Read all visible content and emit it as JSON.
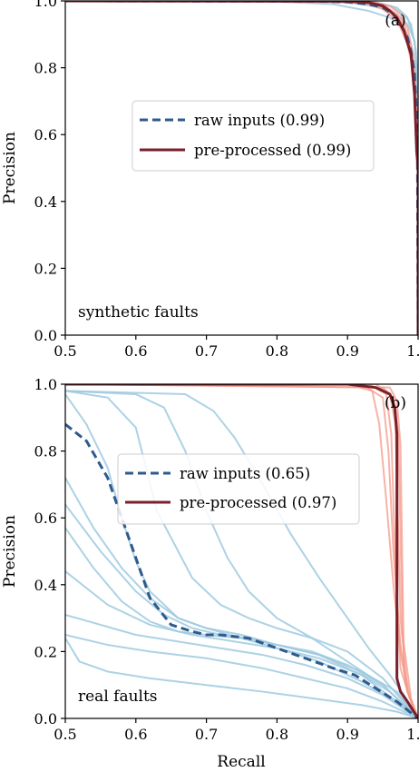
{
  "chart_data": [
    {
      "type": "line",
      "panel_tag": "(a)",
      "annotation": "synthetic faults",
      "xlabel": "",
      "ylabel": "Precision",
      "xlim": [
        0.5,
        1.0
      ],
      "ylim": [
        0.0,
        1.0
      ],
      "xticks": [
        0.5,
        0.6,
        0.7,
        0.8,
        0.9,
        1.0
      ],
      "xtick_labels": [
        "0.5",
        "0.6",
        "0.7",
        "0.8",
        "0.9",
        "1.0"
      ],
      "yticks": [
        0.0,
        0.2,
        0.4,
        0.6,
        0.8,
        1.0
      ],
      "ytick_labels": [
        "0.0",
        "0.2",
        "0.4",
        "0.6",
        "0.8",
        "1.0"
      ],
      "grid": false,
      "legend_position": "center-right",
      "legend": [
        {
          "label": "raw inputs (0.99)",
          "color": "#2f5a8c",
          "style": "dashed"
        },
        {
          "label": "pre-processed (0.99)",
          "color": "#7a1f2b",
          "style": "solid"
        }
      ],
      "series": [
        {
          "name": "raw inputs (0.99)",
          "role": "mean",
          "group": "raw",
          "color": "#2f5a8c",
          "style": "dashed",
          "x": [
            0.5,
            0.85,
            0.9,
            0.93,
            0.95,
            0.965,
            0.975,
            0.985,
            0.99,
            0.995,
            0.999,
            1.0
          ],
          "y": [
            1.0,
            0.999,
            0.997,
            0.99,
            0.98,
            0.96,
            0.93,
            0.89,
            0.85,
            0.78,
            0.6,
            0.0
          ]
        },
        {
          "name": "pre-processed (0.99)",
          "role": "mean",
          "group": "pre",
          "color": "#7a1f2b",
          "style": "solid",
          "x": [
            0.5,
            0.9,
            0.93,
            0.95,
            0.96,
            0.97,
            0.98,
            0.99,
            0.995,
            0.998,
            1.0,
            1.0
          ],
          "y": [
            1.0,
            0.999,
            0.995,
            0.985,
            0.97,
            0.95,
            0.91,
            0.84,
            0.72,
            0.55,
            0.5,
            0.0
          ]
        },
        {
          "role": "run",
          "group": "raw",
          "x": [
            0.5,
            0.8,
            0.88,
            0.93,
            0.96,
            0.98,
            0.99,
            0.997,
            1.0,
            1.0
          ],
          "y": [
            1.0,
            0.998,
            0.99,
            0.97,
            0.95,
            0.92,
            0.87,
            0.78,
            0.6,
            0.0
          ]
        },
        {
          "role": "run",
          "group": "raw",
          "x": [
            0.5,
            0.85,
            0.91,
            0.95,
            0.97,
            0.985,
            0.995,
            1.0,
            1.0
          ],
          "y": [
            1.0,
            0.999,
            0.993,
            0.98,
            0.96,
            0.93,
            0.88,
            0.75,
            0.0
          ]
        },
        {
          "role": "run",
          "group": "raw",
          "x": [
            0.5,
            0.88,
            0.93,
            0.96,
            0.98,
            0.99,
            0.997,
            1.0,
            1.0
          ],
          "y": [
            1.0,
            0.999,
            0.995,
            0.985,
            0.96,
            0.93,
            0.85,
            0.7,
            0.0
          ]
        },
        {
          "role": "run",
          "group": "raw",
          "x": [
            0.5,
            0.9,
            0.94,
            0.97,
            0.985,
            0.995,
            1.0,
            1.0
          ],
          "y": [
            1.0,
            0.999,
            0.996,
            0.98,
            0.95,
            0.88,
            0.72,
            0.0
          ]
        },
        {
          "role": "run",
          "group": "pre",
          "x": [
            0.5,
            0.9,
            0.93,
            0.95,
            0.965,
            0.975,
            0.985,
            0.992,
            0.997,
            1.0,
            1.0
          ],
          "y": [
            1.0,
            0.998,
            0.99,
            0.975,
            0.95,
            0.92,
            0.87,
            0.8,
            0.7,
            0.55,
            0.0
          ]
        },
        {
          "role": "run",
          "group": "pre",
          "x": [
            0.5,
            0.91,
            0.94,
            0.96,
            0.975,
            0.985,
            0.993,
            0.998,
            1.0,
            1.0
          ],
          "y": [
            1.0,
            0.998,
            0.99,
            0.97,
            0.94,
            0.89,
            0.8,
            0.65,
            0.52,
            0.0
          ]
        },
        {
          "role": "run",
          "group": "pre",
          "x": [
            0.5,
            0.92,
            0.95,
            0.97,
            0.98,
            0.99,
            0.996,
            1.0,
            1.0
          ],
          "y": [
            1.0,
            0.999,
            0.99,
            0.96,
            0.93,
            0.86,
            0.73,
            0.55,
            0.0
          ]
        },
        {
          "role": "run",
          "group": "pre",
          "x": [
            0.5,
            0.93,
            0.96,
            0.975,
            0.985,
            0.993,
            0.998,
            1.0,
            1.0
          ],
          "y": [
            1.0,
            0.999,
            0.985,
            0.96,
            0.92,
            0.84,
            0.7,
            0.52,
            0.0
          ]
        }
      ]
    },
    {
      "type": "line",
      "panel_tag": "(b)",
      "annotation": "real faults",
      "xlabel": "Recall",
      "ylabel": "Precision",
      "xlim": [
        0.5,
        1.0
      ],
      "ylim": [
        0.0,
        1.0
      ],
      "xticks": [
        0.5,
        0.6,
        0.7,
        0.8,
        0.9,
        1.0
      ],
      "xtick_labels": [
        "0.5",
        "0.6",
        "0.7",
        "0.8",
        "0.9",
        "1.0"
      ],
      "yticks": [
        0.0,
        0.2,
        0.4,
        0.6,
        0.8,
        1.0
      ],
      "ytick_labels": [
        "0.0",
        "0.2",
        "0.4",
        "0.6",
        "0.8",
        "1.0"
      ],
      "grid": false,
      "legend_position": "upper-center",
      "legend": [
        {
          "label": "raw inputs (0.65)",
          "color": "#2f5a8c",
          "style": "dashed"
        },
        {
          "label": "pre-processed (0.97)",
          "color": "#7a1f2b",
          "style": "solid"
        }
      ],
      "series": [
        {
          "name": "raw inputs (0.65)",
          "role": "mean",
          "group": "raw",
          "color": "#2f5a8c",
          "style": "dashed",
          "x": [
            0.5,
            0.53,
            0.56,
            0.58,
            0.6,
            0.62,
            0.65,
            0.68,
            0.7,
            0.72,
            0.76,
            0.8,
            0.84,
            0.88,
            0.91,
            0.94,
            0.97,
            1.0
          ],
          "y": [
            0.88,
            0.83,
            0.72,
            0.6,
            0.48,
            0.36,
            0.28,
            0.26,
            0.25,
            0.25,
            0.24,
            0.21,
            0.18,
            0.15,
            0.13,
            0.09,
            0.05,
            0.0
          ]
        },
        {
          "name": "pre-processed (0.97)",
          "role": "mean",
          "group": "pre",
          "color": "#7a1f2b",
          "style": "solid",
          "x": [
            0.5,
            0.9,
            0.94,
            0.96,
            0.967,
            0.97,
            0.97,
            0.975,
            0.985,
            1.0
          ],
          "y": [
            1.0,
            1.0,
            0.99,
            0.97,
            0.93,
            0.85,
            0.12,
            0.08,
            0.05,
            0.0
          ]
        },
        {
          "role": "run",
          "group": "raw",
          "x": [
            0.5,
            0.56,
            0.6,
            0.63,
            0.68,
            0.72,
            0.76,
            0.8,
            0.85,
            0.9,
            0.95,
            1.0
          ],
          "y": [
            0.98,
            0.96,
            0.87,
            0.62,
            0.42,
            0.34,
            0.3,
            0.27,
            0.24,
            0.2,
            0.12,
            0.0
          ]
        },
        {
          "role": "run",
          "group": "raw",
          "x": [
            0.5,
            0.53,
            0.56,
            0.58,
            0.6,
            0.62,
            0.66,
            0.7,
            0.75,
            0.8,
            0.86,
            0.92,
            0.97,
            1.0
          ],
          "y": [
            0.97,
            0.88,
            0.75,
            0.6,
            0.47,
            0.38,
            0.3,
            0.27,
            0.25,
            0.22,
            0.19,
            0.14,
            0.08,
            0.0
          ]
        },
        {
          "role": "run",
          "group": "raw",
          "x": [
            0.5,
            0.55,
            0.6,
            0.64,
            0.68,
            0.72,
            0.76,
            0.8,
            0.86,
            0.92,
            1.0
          ],
          "y": [
            0.64,
            0.5,
            0.38,
            0.31,
            0.27,
            0.25,
            0.24,
            0.22,
            0.19,
            0.13,
            0.0
          ]
        },
        {
          "role": "run",
          "group": "raw",
          "x": [
            0.5,
            0.54,
            0.58,
            0.62,
            0.66,
            0.7,
            0.75,
            0.8,
            0.85,
            0.9,
            0.95,
            1.0
          ],
          "y": [
            0.57,
            0.45,
            0.35,
            0.29,
            0.26,
            0.25,
            0.24,
            0.22,
            0.2,
            0.16,
            0.1,
            0.0
          ]
        },
        {
          "role": "run",
          "group": "raw",
          "x": [
            0.5,
            0.56,
            0.62,
            0.68,
            0.74,
            0.8,
            0.86,
            0.92,
            0.96,
            1.0
          ],
          "y": [
            0.44,
            0.34,
            0.28,
            0.25,
            0.23,
            0.21,
            0.18,
            0.13,
            0.08,
            0.0
          ]
        },
        {
          "role": "run",
          "group": "raw",
          "x": [
            0.5,
            0.55,
            0.6,
            0.66,
            0.72,
            0.78,
            0.84,
            0.9,
            0.95,
            1.0
          ],
          "y": [
            0.31,
            0.28,
            0.25,
            0.23,
            0.21,
            0.19,
            0.16,
            0.12,
            0.07,
            0.0
          ]
        },
        {
          "role": "run",
          "group": "raw",
          "x": [
            0.5,
            0.56,
            0.62,
            0.7,
            0.78,
            0.84,
            0.9,
            0.95,
            1.0
          ],
          "y": [
            0.25,
            0.22,
            0.2,
            0.18,
            0.15,
            0.12,
            0.09,
            0.05,
            0.0
          ]
        },
        {
          "role": "run",
          "group": "raw",
          "x": [
            0.5,
            0.52,
            0.56,
            0.62,
            0.7,
            0.78,
            0.85,
            0.92,
            0.97,
            1.0
          ],
          "y": [
            0.24,
            0.17,
            0.14,
            0.12,
            0.1,
            0.08,
            0.06,
            0.04,
            0.02,
            0.0
          ]
        },
        {
          "role": "run",
          "group": "raw",
          "x": [
            0.5,
            0.6,
            0.64,
            0.67,
            0.7,
            0.73,
            0.76,
            0.8,
            0.85,
            0.9,
            0.95,
            1.0
          ],
          "y": [
            0.98,
            0.97,
            0.93,
            0.8,
            0.62,
            0.48,
            0.38,
            0.3,
            0.24,
            0.17,
            0.1,
            0.0
          ]
        },
        {
          "role": "run",
          "group": "raw",
          "x": [
            0.5,
            0.67,
            0.71,
            0.74,
            0.78,
            0.82,
            0.86,
            0.9,
            0.93,
            0.96,
            0.98,
            1.0
          ],
          "y": [
            0.98,
            0.97,
            0.92,
            0.84,
            0.7,
            0.55,
            0.42,
            0.3,
            0.21,
            0.13,
            0.07,
            0.0
          ]
        },
        {
          "role": "run",
          "group": "raw",
          "x": [
            0.5,
            0.54,
            0.58,
            0.62,
            0.66,
            0.7,
            0.75,
            0.8,
            0.86,
            0.92,
            0.97,
            1.0
          ],
          "y": [
            0.72,
            0.57,
            0.45,
            0.36,
            0.3,
            0.27,
            0.24,
            0.21,
            0.17,
            0.11,
            0.05,
            0.0
          ]
        },
        {
          "role": "run",
          "group": "pre",
          "x": [
            0.5,
            0.9,
            0.935,
            0.945,
            0.955,
            0.965,
            0.975,
            0.985,
            1.0
          ],
          "y": [
            1.0,
            1.0,
            0.98,
            0.88,
            0.65,
            0.4,
            0.2,
            0.08,
            0.0
          ]
        },
        {
          "role": "run",
          "group": "pre",
          "x": [
            0.5,
            0.92,
            0.95,
            0.958,
            0.965,
            0.975,
            0.985,
            1.0
          ],
          "y": [
            1.0,
            1.0,
            0.96,
            0.8,
            0.5,
            0.22,
            0.08,
            0.0
          ]
        },
        {
          "role": "run",
          "group": "pre",
          "x": [
            0.5,
            0.93,
            0.955,
            0.962,
            0.968,
            0.975,
            0.988,
            1.0
          ],
          "y": [
            1.0,
            1.0,
            0.97,
            0.85,
            0.45,
            0.15,
            0.06,
            0.0
          ]
        },
        {
          "role": "run",
          "group": "pre",
          "x": [
            0.5,
            0.94,
            0.96,
            0.968,
            0.975,
            0.985,
            1.0
          ],
          "y": [
            1.0,
            1.0,
            0.97,
            0.88,
            0.3,
            0.08,
            0.0
          ]
        },
        {
          "role": "run",
          "group": "pre",
          "x": [
            0.5,
            0.95,
            0.965,
            0.972,
            0.978,
            0.99,
            1.0
          ],
          "y": [
            1.0,
            0.99,
            0.96,
            0.85,
            0.25,
            0.06,
            0.0
          ]
        },
        {
          "role": "run",
          "group": "pre",
          "x": [
            0.5,
            0.96,
            0.97,
            0.975,
            0.98,
            0.99,
            1.0
          ],
          "y": [
            1.0,
            0.99,
            0.95,
            0.82,
            0.15,
            0.05,
            0.0
          ]
        }
      ]
    }
  ],
  "colors": {
    "raw_runs": "#9ecae1",
    "pre_runs": "#f4998a",
    "raw_mean": "#2f5a8c",
    "pre_mean": "#7a1f2b"
  }
}
